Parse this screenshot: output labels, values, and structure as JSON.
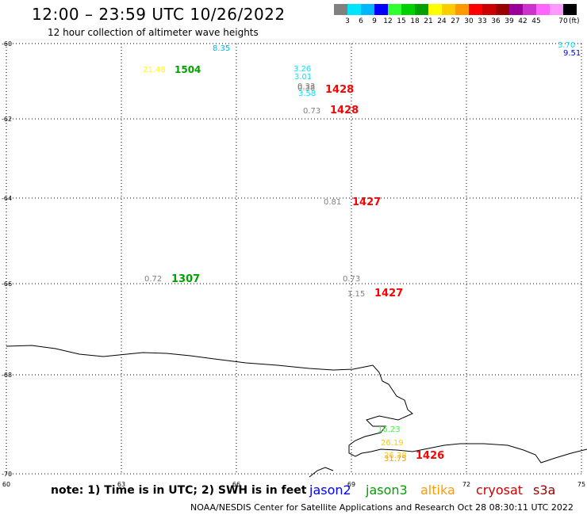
{
  "header": {
    "title": "12:00 – 23:59 UTC 10/26/2022",
    "subtitle": "12 hour collection of altimeter wave heights"
  },
  "legend": {
    "colors": [
      "#808080",
      "#00e5ff",
      "#00b7ff",
      "#0000ff",
      "#32ff32",
      "#00d000",
      "#00a000",
      "#ffff00",
      "#ffcc00",
      "#ff9900",
      "#ff0000",
      "#cc0000",
      "#990000",
      "#990099",
      "#cc33cc",
      "#ff66ff",
      "#ff99ff",
      "#000000"
    ],
    "ticks": [
      "3",
      "6",
      "9",
      "12",
      "15",
      "18",
      "21",
      "24",
      "27",
      "30",
      "33",
      "36",
      "39",
      "42",
      "45",
      "70"
    ],
    "unit": "(ft)"
  },
  "axes": {
    "lat_labels": [
      "-60",
      "-62",
      "-64",
      "-66",
      "-68",
      "-70"
    ],
    "lon_labels": [
      "60",
      "63",
      "66",
      "69",
      "72",
      "75"
    ]
  },
  "labels": [
    {
      "text": "8.35",
      "color": "#00b7ff"
    },
    {
      "text": "21.48",
      "color": "#ffff00"
    },
    {
      "text": "1504",
      "color": "#00a000"
    },
    {
      "text": "3.26",
      "color": "#00e5ff"
    },
    {
      "text": "3.01",
      "color": "#00e5ff"
    },
    {
      "text": "0.33",
      "color": "#808080"
    },
    {
      "text": "0.38",
      "color": "#808080"
    },
    {
      "text": "3.58",
      "color": "#00e5ff"
    },
    {
      "text": "1428",
      "color": "#ff0000"
    },
    {
      "text": "0.73",
      "color": "#808080"
    },
    {
      "text": "1428",
      "color": "#ff0000"
    },
    {
      "text": "3.70",
      "color": "#00e5ff"
    },
    {
      "text": "9.51",
      "color": "#0000ff"
    },
    {
      "text": "0.81",
      "color": "#808080"
    },
    {
      "text": "1427",
      "color": "#ff0000"
    },
    {
      "text": "0.72",
      "color": "#808080"
    },
    {
      "text": "1307",
      "color": "#00a000"
    },
    {
      "text": "0.73",
      "color": "#808080"
    },
    {
      "text": "1.15",
      "color": "#808080"
    },
    {
      "text": "1427",
      "color": "#ff0000"
    },
    {
      "text": "16.23",
      "color": "#32ff32"
    },
    {
      "text": "26.19",
      "color": "#ffcc00"
    },
    {
      "text": "26.38",
      "color": "#ffcc00"
    },
    {
      "text": "31.75",
      "color": "#ff9900"
    },
    {
      "text": "1426",
      "color": "#ff0000"
    }
  ],
  "note": "note: 1) Time is in UTC; 2) SWH is in feet",
  "satellites": [
    {
      "name": "jason2",
      "color": "#0000ff"
    },
    {
      "name": "jason3",
      "color": "#00a000"
    },
    {
      "name": "altika",
      "color": "#ff9900"
    },
    {
      "name": "cryosat",
      "color": "#cc0000"
    },
    {
      "name": "s3a",
      "color": "#990000"
    }
  ],
  "footer": "NOAA/NESDIS Center for Satellite Applications and Research    Oct 28 08:30:11 UTC 2022"
}
